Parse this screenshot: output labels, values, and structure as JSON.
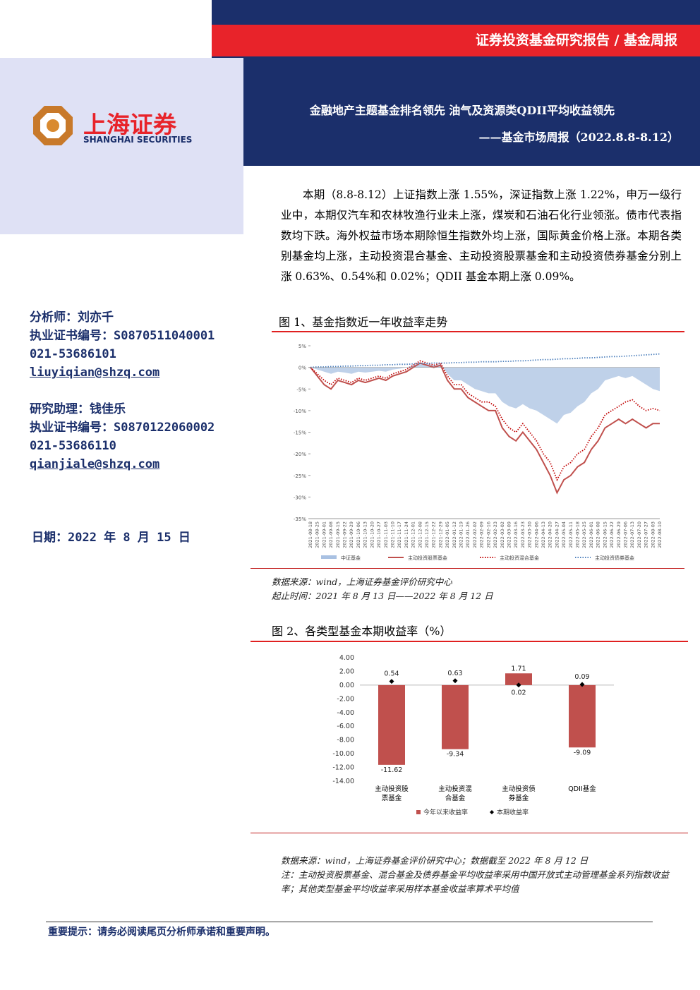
{
  "header": {
    "report_type": "证券投资基金研究报告 / 基金周报",
    "title": "金融地产主题基金排名领先 油气及资源类QDII平均收益领先",
    "subtitle": "——基金市场周报（2022.8.8-8.12）",
    "logo_cn": "上海证券",
    "logo_en": "SHANGHAI SECURITIES"
  },
  "sidebar": {
    "analyst": [
      "分析师：刘亦千",
      "执业证书编号：S0870511040001",
      "021-53686101",
      "liuyiqian@shzq.com"
    ],
    "assistant": [
      "研究助理：钱佳乐",
      "执业证书编号：S0870122060002",
      "021-53686110",
      "qianjiale@shzq.com"
    ],
    "date": "日期：2022 年 8 月 15 日"
  },
  "summary": "本期（8.8-8.12）上证指数上涨 1.55%，深证指数上涨 1.22%，申万一级行业中，本期仅汽车和农林牧渔行业未上涨，煤炭和石油石化行业领涨。债市代表指数均下跌。海外权益市场本期除恒生指数外均上涨，国际黄金价格上涨。本期各类别基金均上涨，主动投资混合基金、主动投资股票基金和主动投资债券基金分别上涨 0.63%、0.54%和 0.02%；QDII 基金本期上涨 0.09%。",
  "figure1": {
    "title": "图 1、基金指数近一年收益率走势",
    "notes": [
      "数据来源：wind，上海证券基金评价研究中心",
      "起止时间：2021 年 8 月 13 日——2022 年 8 月 12 日"
    ],
    "chart_data": {
      "type": "line",
      "categories": [
        "2021-08-18",
        "2021-08-25",
        "2021-09-01",
        "2021-09-08",
        "2021-09-15",
        "2021-09-22",
        "2021-09-29",
        "2021-10-06",
        "2021-10-13",
        "2021-10-20",
        "2021-10-27",
        "2021-11-03",
        "2021-11-10",
        "2021-11-17",
        "2021-11-24",
        "2021-12-01",
        "2021-12-08",
        "2021-12-15",
        "2021-12-22",
        "2021-12-29",
        "2022-01-05",
        "2022-01-12",
        "2022-01-19",
        "2022-01-26",
        "2022-02-02",
        "2022-02-09",
        "2022-02-16",
        "2022-02-23",
        "2022-03-02",
        "2022-03-09",
        "2022-03-16",
        "2022-03-23",
        "2022-03-30",
        "2022-04-06",
        "2022-04-13",
        "2022-04-20",
        "2022-04-27",
        "2022-05-04",
        "2022-05-11",
        "2022-05-18",
        "2022-05-25",
        "2022-06-01",
        "2022-06-08",
        "2022-06-15",
        "2022-06-22",
        "2022-06-29",
        "2022-07-06",
        "2022-07-13",
        "2022-07-20",
        "2022-07-27",
        "2022-08-03",
        "2022-08-10"
      ],
      "series": [
        {
          "name": "中证基金",
          "color": "#a9c1e2",
          "style": "area",
          "values": [
            0,
            -0.5,
            -1,
            -1.5,
            -1,
            -1.2,
            -1.5,
            -1,
            -1.2,
            -1,
            -0.8,
            -1,
            -0.5,
            -0.3,
            0,
            0.5,
            1,
            0.8,
            0.5,
            0.8,
            -1.5,
            -3,
            -3,
            -4,
            -5,
            -5.5,
            -6,
            -6,
            -8,
            -9,
            -9.5,
            -8.5,
            -9.5,
            -10,
            -11,
            -12,
            -13,
            -11,
            -10.5,
            -9,
            -8,
            -6,
            -5,
            -3,
            -2.5,
            -2,
            -2.5,
            -2,
            -3,
            -4,
            -5,
            -5.5
          ]
        },
        {
          "name": "主动投资股票基金",
          "color": "#c0504d",
          "style": "solid",
          "values": [
            0,
            -2,
            -4,
            -5,
            -3,
            -3.5,
            -4,
            -3,
            -3.5,
            -3,
            -2.5,
            -3,
            -2,
            -1.5,
            -1,
            0,
            1,
            0.5,
            0,
            0.5,
            -3,
            -5,
            -5,
            -7,
            -8,
            -9,
            -10,
            -10,
            -14,
            -16,
            -17,
            -15,
            -17,
            -19,
            -22,
            -25,
            -29,
            -26,
            -25,
            -23,
            -22,
            -19,
            -17,
            -14,
            -13,
            -12,
            -13,
            -12,
            -13,
            -14,
            -13,
            -13
          ]
        },
        {
          "name": "主动投资混合基金",
          "color": "#c00000",
          "style": "dotted",
          "values": [
            0,
            -1.5,
            -3,
            -4,
            -2.5,
            -3,
            -3.5,
            -2.5,
            -3,
            -2.5,
            -2,
            -2.5,
            -1.5,
            -1,
            -0.5,
            0.5,
            1.5,
            1,
            0.5,
            1,
            -2,
            -4,
            -4,
            -6,
            -7,
            -8,
            -8,
            -9,
            -12,
            -14,
            -15,
            -13,
            -15,
            -17,
            -20,
            -22,
            -26,
            -23,
            -22,
            -20,
            -19,
            -16,
            -14,
            -11,
            -10,
            -9,
            -8,
            -7.5,
            -9,
            -10,
            -9.5,
            -10
          ]
        },
        {
          "name": "主动投资债券基金",
          "color": "#4f81bd",
          "style": "dotted",
          "values": [
            0,
            0.1,
            0.1,
            0.2,
            0.2,
            0.3,
            0.3,
            0.4,
            0.4,
            0.5,
            0.5,
            0.6,
            0.6,
            0.7,
            0.7,
            0.8,
            0.9,
            0.9,
            1.0,
            1.0,
            1.0,
            1.1,
            1.1,
            1.2,
            1.2,
            1.3,
            1.3,
            1.3,
            1.4,
            1.4,
            1.5,
            1.5,
            1.6,
            1.7,
            1.8,
            1.8,
            1.9,
            2.0,
            2.0,
            2.1,
            2.2,
            2.2,
            2.3,
            2.4,
            2.5,
            2.5,
            2.6,
            2.7,
            2.8,
            2.9,
            3.0,
            3.1
          ]
        }
      ],
      "ylim": [
        -35,
        5
      ],
      "yticks": [
        {
          "value": 5,
          "label": "5%"
        },
        {
          "value": 0,
          "label": "0%"
        },
        {
          "value": -5,
          "label": "-5%"
        },
        {
          "value": -10,
          "label": "-10%"
        },
        {
          "value": -15,
          "label": "-15%"
        },
        {
          "value": -20,
          "label": "-20%"
        },
        {
          "value": -25,
          "label": "-25%"
        },
        {
          "value": -30,
          "label": "-30%"
        },
        {
          "value": -35,
          "label": "-35%"
        }
      ],
      "legend": "bottom"
    }
  },
  "figure2": {
    "title": "图 2、各类型基金本期收益率（%）",
    "notes": [
      "数据来源：wind，上海证券基金评价研究中心；数据截至 2022 年 8 月 12 日",
      "注：主动投资股票基金、混合基金及债券基金平均收益率采用中国开放式主动管理基金系列指数收益率；其他类型基金平均收益率采用样本基金收益率算术平均值"
    ],
    "chart_data": {
      "type": "bar",
      "categories": [
        "主动投资股票基金",
        "主动投资混合基金",
        "主动投资债券基金",
        "QDII基金"
      ],
      "series": [
        {
          "name": "今年以来收益率",
          "color": "#c0504d",
          "style": "bar",
          "values": [
            -11.62,
            -9.34,
            1.71,
            -9.09
          ]
        },
        {
          "name": "本期收益率",
          "color": "#000000",
          "style": "diamond",
          "values": [
            0.54,
            0.63,
            0.02,
            0.09
          ]
        }
      ],
      "ylim": [
        -14,
        4
      ],
      "yticks": [
        {
          "value": 4,
          "label": "4.00"
        },
        {
          "value": 2,
          "label": "2.00"
        },
        {
          "value": 0,
          "label": "0.00"
        },
        {
          "value": -2,
          "label": "-2.00"
        },
        {
          "value": -4,
          "label": "-4.00"
        },
        {
          "value": -6,
          "label": "-6.00"
        },
        {
          "value": -8,
          "label": "-8.00"
        },
        {
          "value": -10,
          "label": "-10.00"
        },
        {
          "value": -12,
          "label": "-12.00"
        },
        {
          "value": -14,
          "label": "-14.00"
        }
      ],
      "legend": "bottom"
    }
  },
  "footer": "重要提示：请务必阅读尾页分析师承诺和重要声明。"
}
